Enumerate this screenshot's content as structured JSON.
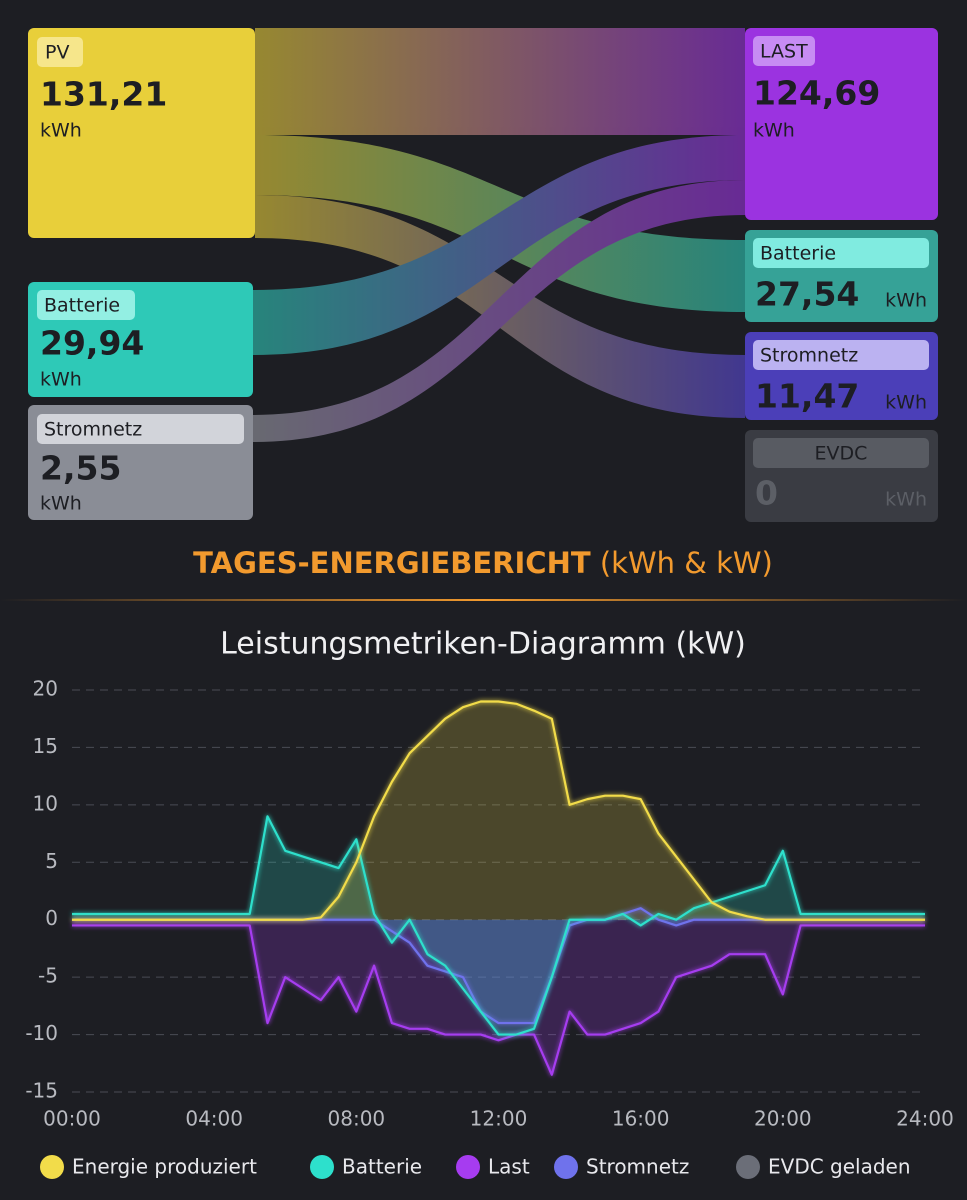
{
  "sankey": {
    "sources": [
      {
        "label": "PV",
        "value": "131,21",
        "unit": "kWh"
      },
      {
        "label": "Batterie",
        "value": "29,94",
        "unit": "kWh"
      },
      {
        "label": "Stromnetz",
        "value": "2,55",
        "unit": "kWh"
      }
    ],
    "targets": [
      {
        "label": "LAST",
        "value": "124,69",
        "unit": "kWh"
      },
      {
        "label": "Batterie",
        "value": "27,54",
        "unit": "kWh"
      },
      {
        "label": "Stromnetz",
        "value": "11,47",
        "unit": "kWh"
      },
      {
        "label": "EVDC",
        "value": "0",
        "unit": "kWh"
      }
    ]
  },
  "report_title": "TAGES-ENERGIEBERICHT",
  "report_subtitle": "(kWh & kW)",
  "chart_data": {
    "type": "line",
    "title": "Leistungsmetriken-Diagramm (kW)",
    "x": [
      0,
      0.5,
      1,
      1.5,
      2,
      2.5,
      3,
      3.5,
      4,
      4.5,
      5,
      5.5,
      6,
      6.5,
      7,
      7.5,
      8,
      8.5,
      9,
      9.5,
      10,
      10.5,
      11,
      11.5,
      12,
      12.5,
      13,
      13.5,
      14,
      14.5,
      15,
      15.5,
      16,
      16.5,
      17,
      17.5,
      18,
      18.5,
      19,
      19.5,
      20,
      20.5,
      21,
      21.5,
      22,
      22.5,
      23,
      23.5,
      24
    ],
    "xlim": [
      0,
      24
    ],
    "xticks": [
      {
        "value": 0,
        "label": "00:00"
      },
      {
        "value": 4,
        "label": "04:00"
      },
      {
        "value": 8,
        "label": "08:00"
      },
      {
        "value": 12,
        "label": "12:00"
      },
      {
        "value": 16,
        "label": "16:00"
      },
      {
        "value": 20,
        "label": "20:00"
      },
      {
        "value": 24,
        "label": "24:00"
      }
    ],
    "ylim": [
      -15,
      20
    ],
    "yticks": [
      -15,
      -10,
      -5,
      0,
      5,
      10,
      15,
      20
    ],
    "grid": true,
    "series": [
      {
        "name": "Energie produziert",
        "color": "#f2dc4a",
        "values": [
          0,
          0,
          0,
          0,
          0,
          0,
          0,
          0,
          0,
          0,
          0,
          0,
          0,
          0,
          0.2,
          2,
          5,
          9,
          12,
          14.5,
          16,
          17.5,
          18.5,
          19,
          19,
          18.8,
          18.2,
          17.5,
          10,
          10.5,
          10.8,
          10.8,
          10.5,
          7.5,
          5.5,
          3.5,
          1.5,
          0.7,
          0.3,
          0,
          0,
          0,
          0,
          0,
          0,
          0,
          0,
          0,
          0
        ]
      },
      {
        "name": "Batterie",
        "color": "#2de0cc",
        "values": [
          0.5,
          0.5,
          0.5,
          0.5,
          0.5,
          0.5,
          0.5,
          0.5,
          0.5,
          0.5,
          0.5,
          9,
          6,
          5.5,
          5,
          4.5,
          7,
          0.5,
          -2,
          0,
          -3,
          -4,
          -6,
          -8,
          -10,
          -10,
          -9.5,
          -5,
          0,
          0,
          0,
          0.5,
          -0.5,
          0.5,
          0,
          1,
          1.5,
          2,
          2.5,
          3,
          6,
          0.5,
          0.5,
          0.5,
          0.5,
          0.5,
          0.5,
          0.5,
          0.5
        ]
      },
      {
        "name": "Last",
        "color": "#a63cf0",
        "values": [
          -0.5,
          -0.5,
          -0.5,
          -0.5,
          -0.5,
          -0.5,
          -0.5,
          -0.5,
          -0.5,
          -0.5,
          -0.5,
          -9,
          -5,
          -6,
          -7,
          -5,
          -8,
          -4,
          -9,
          -9.5,
          -9.5,
          -10,
          -10,
          -10,
          -10.5,
          -10,
          -10,
          -13.5,
          -8,
          -10,
          -10,
          -9.5,
          -9,
          -8,
          -5,
          -4.5,
          -4,
          -3,
          -3,
          -3,
          -6.5,
          -0.5,
          -0.5,
          -0.5,
          -0.5,
          -0.5,
          -0.5,
          -0.5,
          -0.5
        ]
      },
      {
        "name": "Stromnetz",
        "color": "#6f72ec",
        "values": [
          0,
          0,
          0,
          0,
          0,
          0,
          0,
          0,
          0,
          0,
          0,
          0,
          0,
          0,
          0,
          0,
          0,
          0,
          -1,
          -2,
          -4,
          -4.5,
          -5,
          -8,
          -9,
          -9,
          -9,
          -5,
          -0.5,
          0,
          0,
          0.5,
          1,
          0,
          -0.5,
          0,
          0,
          0,
          0,
          0,
          0,
          0,
          0,
          0,
          0,
          0,
          0,
          0,
          0
        ]
      },
      {
        "name": "EVDC geladen",
        "color": "#6b6e78",
        "values": [
          0,
          0,
          0,
          0,
          0,
          0,
          0,
          0,
          0,
          0,
          0,
          0,
          0,
          0,
          0,
          0,
          0,
          0,
          0,
          0,
          0,
          0,
          0,
          0,
          0,
          0,
          0,
          0,
          0,
          0,
          0,
          0,
          0,
          0,
          0,
          0,
          0,
          0,
          0,
          0,
          0,
          0,
          0,
          0,
          0,
          0,
          0,
          0,
          0
        ]
      }
    ]
  }
}
